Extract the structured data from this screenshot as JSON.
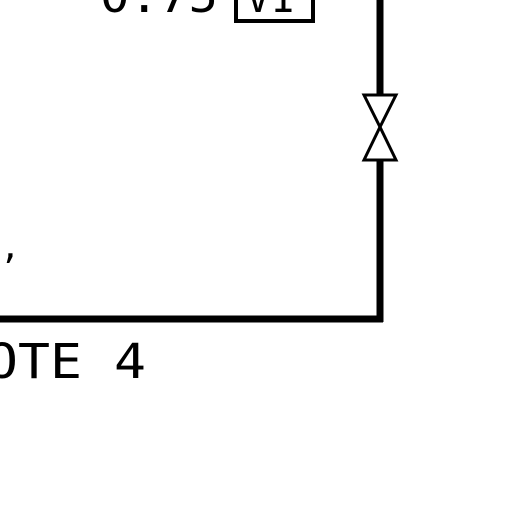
{
  "drawing": {
    "top_label_partial": "0.75",
    "valve_tag": "V1",
    "stray_mark": ",",
    "note_label_partial": "OTE 4"
  },
  "colors": {
    "ink": "#000000",
    "paper": "#ffffff"
  }
}
